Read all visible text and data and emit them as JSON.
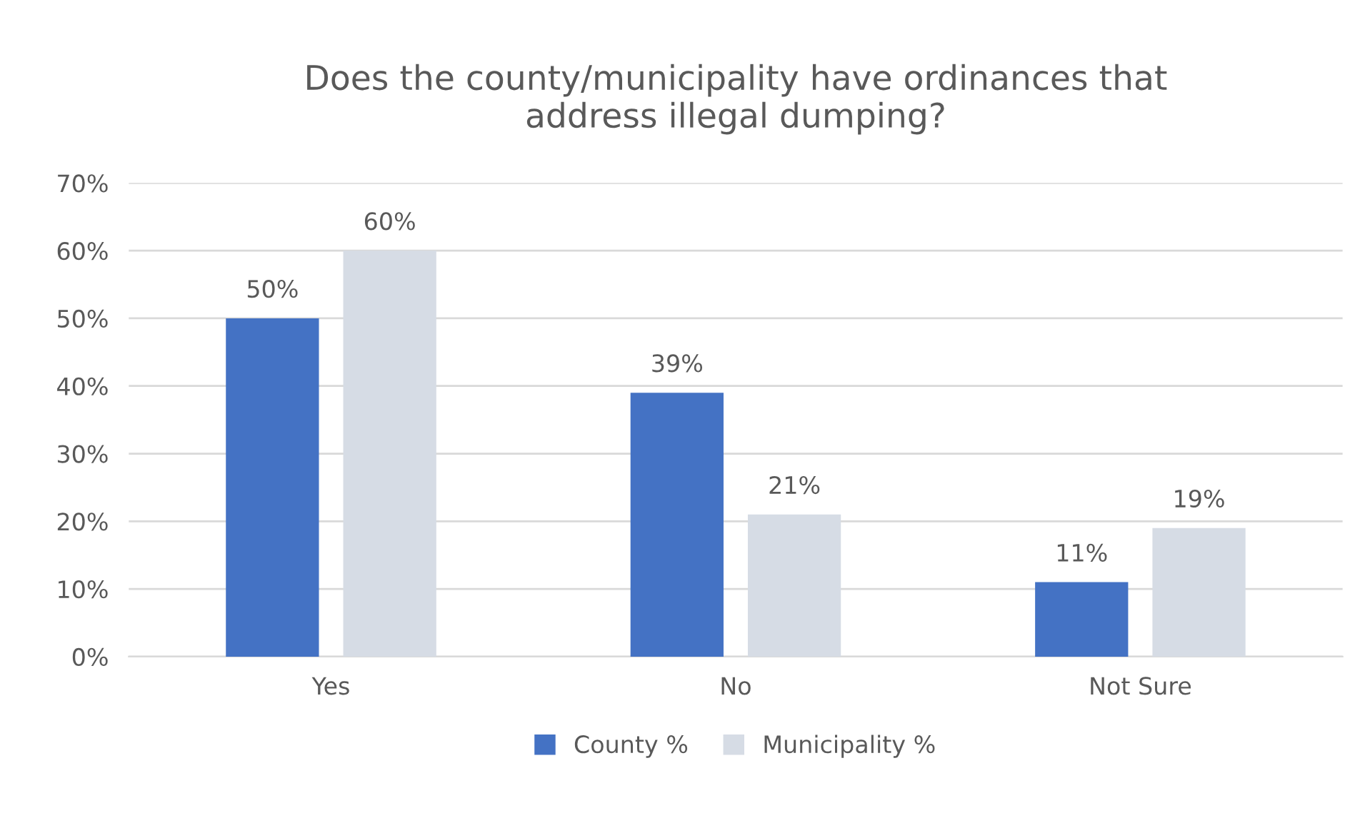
{
  "chart_data": {
    "type": "bar",
    "title": "Does the county/municipality have ordinances that\naddress illegal dumping?",
    "categories": [
      "Yes",
      "No",
      "Not Sure"
    ],
    "series": [
      {
        "name": "County %",
        "color": "#4472c4",
        "values": [
          50,
          39,
          11
        ],
        "value_labels": [
          "50%",
          "39%",
          "11%"
        ]
      },
      {
        "name": "Municipality %",
        "color": "#d6dce5",
        "values": [
          60,
          21,
          19
        ],
        "value_labels": [
          "60%",
          "21%",
          "19%"
        ]
      }
    ],
    "ylim": [
      0,
      70
    ],
    "yticks": [
      {
        "value": 0,
        "label": "0%"
      },
      {
        "value": 10,
        "label": "10%"
      },
      {
        "value": 20,
        "label": "20%"
      },
      {
        "value": 30,
        "label": "30%"
      },
      {
        "value": 40,
        "label": "40%"
      },
      {
        "value": 50,
        "label": "50%"
      },
      {
        "value": 60,
        "label": "60%"
      },
      {
        "value": 70,
        "label": "70%"
      }
    ],
    "grid": "y",
    "legend": "bottom"
  }
}
